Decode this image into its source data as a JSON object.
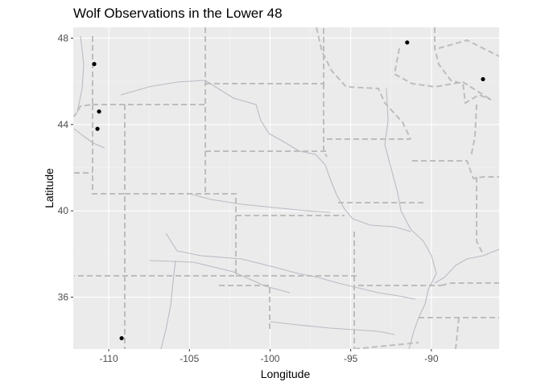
{
  "chart_data": {
    "type": "scatter",
    "title": "Wolf Observations in the Lower 48",
    "xlabel": "Longitude",
    "ylabel": "Latitude",
    "xlim": [
      -112.2,
      -85.8
    ],
    "ylim": [
      33.6,
      48.5
    ],
    "x_ticks": [
      -110,
      -105,
      -100,
      -95,
      -90
    ],
    "x_tick_labels": [
      "-110",
      "-105",
      "-100",
      "-95",
      "-90"
    ],
    "y_ticks": [
      36,
      40,
      44,
      48
    ],
    "y_tick_labels": [
      "36",
      "40",
      "44",
      "48"
    ],
    "grid": true,
    "legend": "none",
    "basemap": "US state borders (dashed) and major rivers",
    "points": [
      {
        "lon": -110.9,
        "lat": 46.8
      },
      {
        "lon": -110.6,
        "lat": 44.6
      },
      {
        "lon": -110.7,
        "lat": 43.8
      },
      {
        "lon": -109.2,
        "lat": 34.1
      },
      {
        "lon": -91.5,
        "lat": 47.8
      },
      {
        "lon": -86.8,
        "lat": 46.1
      }
    ],
    "colors": {
      "panel": "#ebebeb",
      "grid_major": "#ffffff",
      "grid_minor": "#f5f5f5",
      "point": "#000000",
      "border": "#bdbdbd",
      "river": "#b8bcc4"
    }
  }
}
